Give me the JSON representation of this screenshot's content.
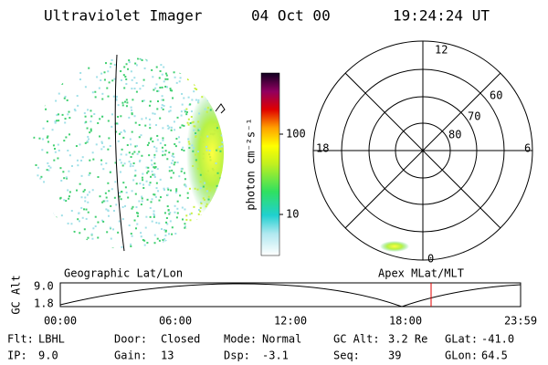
{
  "header": {
    "title": "Ultraviolet Imager",
    "date": "04 Oct 00",
    "time": "19:24:24 UT"
  },
  "colorbar": {
    "label": "photon cm⁻²s⁻¹",
    "ticks": [
      "100",
      "10"
    ]
  },
  "polar": {
    "mlt": [
      "12",
      "18",
      "6",
      "0"
    ],
    "lat": [
      "60",
      "70",
      "80"
    ]
  },
  "panel_labels": {
    "left": "Geographic Lat/Lon",
    "right": "Apex MLat/MLT"
  },
  "altitude_plot": {
    "ylabel": "GC Alt",
    "yticks": [
      "9.0",
      "1.8"
    ],
    "xticks": [
      "00:00",
      "06:00",
      "12:00",
      "18:00",
      "23:59"
    ]
  },
  "info": [
    [
      [
        "Flt:",
        "LBHL"
      ],
      [
        "Door:",
        "Closed"
      ],
      [
        "Mode:",
        "Normal"
      ],
      [
        "GC Alt:",
        "3.2 Re"
      ],
      [
        "GLat:",
        "-41.0"
      ]
    ],
    [
      [
        "IP:",
        "9.0"
      ],
      [
        "Gain:",
        "13"
      ],
      [
        "Dsp:",
        "-3.1"
      ],
      [
        "Seq:",
        "39"
      ],
      [
        "GLon:",
        "64.5"
      ]
    ]
  ]
}
